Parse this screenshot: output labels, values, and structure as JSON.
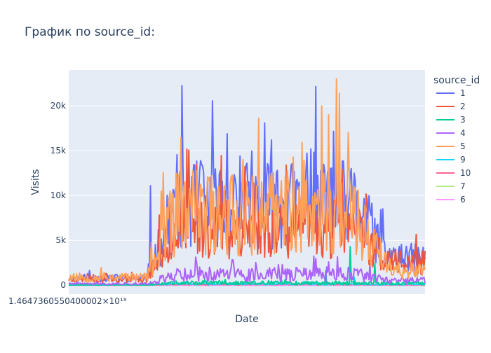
{
  "chart_data": {
    "type": "line",
    "title": "График по source_id:",
    "xlabel": "Date",
    "ylabel": "Visits",
    "x_tick_label": "1.4647360550400002×10¹⁸",
    "ylim": [
      -1000,
      24000
    ],
    "y_ticks": [
      0,
      5000,
      10000,
      15000,
      20000
    ],
    "y_tick_labels": [
      "0",
      "5k",
      "10k",
      "15k",
      "20k"
    ],
    "grid": true,
    "legend_title": "source_id",
    "legend_position": "right",
    "plot_background": "#e5ecf6",
    "series": [
      {
        "name": "1",
        "color": "#636efa",
        "x_days": 363,
        "start_level": 800,
        "peak_level": 9000,
        "end_level": 3000,
        "noise": 0.55,
        "spikes": [
          [
            0.55,
            18100
          ],
          [
            0.48,
            14400
          ],
          [
            0.5,
            13600
          ],
          [
            0.57,
            16200
          ],
          [
            0.68,
            15200
          ],
          [
            0.79,
            12200
          ],
          [
            0.23,
            11100
          ]
        ],
        "seed": 11
      },
      {
        "name": "2",
        "color": "#ef553b",
        "x_days": 363,
        "start_level": 700,
        "peak_level": 6500,
        "end_level": 2500,
        "noise": 0.55,
        "spikes": [
          [
            0.36,
            13500
          ],
          [
            0.61,
            13400
          ],
          [
            0.52,
            11400
          ],
          [
            0.44,
            10400
          ],
          [
            0.86,
            6200
          ]
        ],
        "seed": 23
      },
      {
        "name": "3",
        "color": "#00cc96",
        "x_days": 363,
        "start_level": 40,
        "peak_level": 250,
        "end_level": 200,
        "noise": 0.9,
        "spikes": [
          [
            0.79,
            4300
          ],
          [
            0.86,
            2400
          ],
          [
            0.72,
            1600
          ]
        ],
        "seed": 37
      },
      {
        "name": "4",
        "color": "#ab63fa",
        "x_days": 363,
        "start_level": 150,
        "peak_level": 1200,
        "end_level": 500,
        "noise": 0.7,
        "spikes": [
          [
            0.36,
            2500
          ],
          [
            0.46,
            2800
          ],
          [
            0.6,
            2300
          ],
          [
            0.73,
            2600
          ]
        ],
        "seed": 41
      },
      {
        "name": "5",
        "color": "#ffa15a",
        "x_days": 363,
        "start_level": 900,
        "peak_level": 8000,
        "end_level": 1600,
        "noise": 0.6,
        "spikes": [
          [
            0.75,
            23000
          ],
          [
            0.76,
            21400
          ],
          [
            0.71,
            20000
          ],
          [
            0.73,
            19000
          ],
          [
            0.63,
            14300
          ],
          [
            0.49,
            14000
          ],
          [
            0.26,
            10500
          ]
        ],
        "seed": 53
      },
      {
        "name": "9",
        "color": "#19d3f3",
        "x_days": 363,
        "start_level": 30,
        "peak_level": 150,
        "end_level": 80,
        "noise": 0.8,
        "spikes": [
          [
            0.8,
            900
          ]
        ],
        "seed": 67
      },
      {
        "name": "10",
        "color": "#ff6692",
        "x_days": 363,
        "start_level": 20,
        "peak_level": 80,
        "end_level": 40,
        "noise": 0.8,
        "spikes": [],
        "seed": 71
      },
      {
        "name": "7",
        "color": "#b6e880",
        "x_days": 363,
        "start_level": 2,
        "peak_level": 6,
        "end_level": 3,
        "noise": 0.5,
        "spikes": [],
        "seed": 83
      },
      {
        "name": "6",
        "color": "#ff97ff",
        "x_days": 363,
        "start_level": 1,
        "peak_level": 2,
        "end_level": 1,
        "noise": 0.5,
        "spikes": [],
        "seed": 97
      }
    ]
  }
}
